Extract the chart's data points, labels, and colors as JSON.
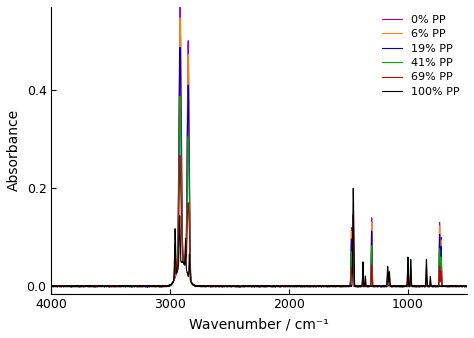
{
  "title": "",
  "xlabel": "Wavenumber / cm⁻¹",
  "ylabel": "Absorbance",
  "xlim": [
    4000,
    500
  ],
  "ylim": [
    -0.015,
    0.57
  ],
  "yticks": [
    0.0,
    0.2,
    0.4
  ],
  "xticks": [
    4000,
    3000,
    2000,
    1000
  ],
  "legend_labels": [
    "100% PP",
    "69% PP",
    "41% PP",
    "19% PP",
    "6% PP",
    "0% PP"
  ],
  "line_colors": [
    "#000000",
    "#cc0000",
    "#00aa00",
    "#0000cc",
    "#ff8800",
    "#9900bb"
  ],
  "background_color": "#ffffff",
  "legend_fontsize": 8,
  "axis_fontsize": 10,
  "linewidth": 0.8
}
